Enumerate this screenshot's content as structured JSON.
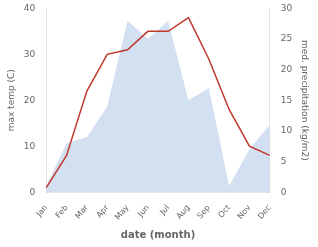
{
  "chart_data": {
    "type": "line",
    "xlabel": "date (month)",
    "ylabel": "max temp (C)",
    "y2label": "med. precipitation (kg/m2)",
    "categories": [
      "Jan",
      "Feb",
      "Mar",
      "Apr",
      "May",
      "Jun",
      "Jul",
      "Aug",
      "Sep",
      "Oct",
      "Nov",
      "Dec"
    ],
    "series": [
      {
        "type": "line",
        "color": "#c0392b",
        "values": [
          1,
          8,
          22,
          30,
          31,
          35,
          35,
          38,
          29,
          18,
          10,
          8
        ]
      },
      {
        "type": "area",
        "color": "#aec6e8",
        "axis": "y2",
        "values": [
          1,
          8,
          9,
          14,
          28,
          25,
          28,
          15,
          17,
          1,
          7,
          11
        ]
      }
    ],
    "ylim": [
      0,
      40
    ],
    "yticks": [
      0,
      10,
      20,
      30,
      40
    ],
    "y2lim": [
      0,
      30
    ],
    "y2ticks": [
      0,
      5,
      10,
      15,
      20,
      25,
      30
    ],
    "grid": false
  }
}
